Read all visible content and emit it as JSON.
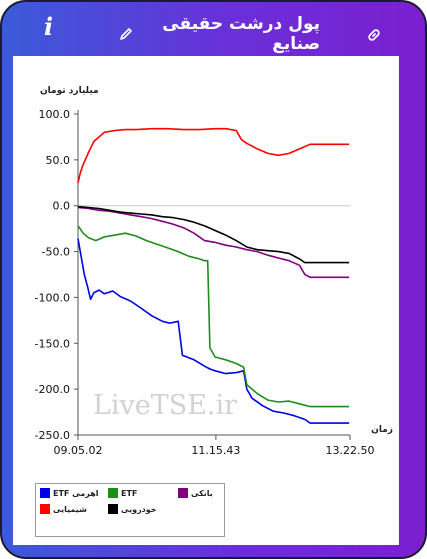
{
  "header": {
    "title": "پول درشت حقیقی صنایع"
  },
  "chart_data": {
    "type": "line",
    "ylabel": "میلیارد تومان",
    "xlabel": "زمان",
    "watermark": "LiveTSE.ir",
    "ylim": [
      -250,
      100
    ],
    "yticks": [
      "100.0",
      "50.0",
      "0.0",
      "-50.0",
      "-100.0",
      "-150.0",
      "-200.0",
      "-250.0"
    ],
    "ytick_values": [
      100,
      50,
      0,
      -50,
      -100,
      -150,
      -200,
      -250
    ],
    "xlim": [
      "09:05:02",
      "13:22:50"
    ],
    "xticks": [
      "09.05.02",
      "11.15.43",
      "13.22.50"
    ],
    "xtick_values": [
      "09:05:02",
      "11:15:43",
      "13:22:50"
    ],
    "x_units": "clock time",
    "legend_placement": "bottom-left",
    "grid": "horizontal zero line only",
    "series": [
      {
        "name": "ETF اهرمی",
        "color": "#0000e6",
        "points": [
          [
            "09:05",
            -36
          ],
          [
            "09:08",
            -55
          ],
          [
            "09:11",
            -75
          ],
          [
            "09:14",
            -88
          ],
          [
            "09:17",
            -102
          ],
          [
            "09:20",
            -95
          ],
          [
            "09:25",
            -92
          ],
          [
            "09:30",
            -96
          ],
          [
            "09:38",
            -93
          ],
          [
            "09:45",
            -99
          ],
          [
            "09:55",
            -104
          ],
          [
            "10:05",
            -112
          ],
          [
            "10:15",
            -120
          ],
          [
            "10:25",
            -126
          ],
          [
            "10:32",
            -128
          ],
          [
            "10:40",
            -126
          ],
          [
            "10:44",
            -163
          ],
          [
            "10:55",
            -168
          ],
          [
            "11:05",
            -175
          ],
          [
            "11:10",
            -178
          ],
          [
            "11:15",
            -180
          ],
          [
            "11:25",
            -183
          ],
          [
            "11:35",
            -182
          ],
          [
            "11:42",
            -180
          ],
          [
            "11:45",
            -200
          ],
          [
            "11:50",
            -210
          ],
          [
            "12:00",
            -218
          ],
          [
            "12:10",
            -224
          ],
          [
            "12:20",
            -226
          ],
          [
            "12:30",
            -229
          ],
          [
            "12:40",
            -233
          ],
          [
            "12:45",
            -237
          ],
          [
            "13:00",
            -237
          ],
          [
            "13:22",
            -237
          ]
        ]
      },
      {
        "name": "ETF",
        "color": "#1e8c1e",
        "points": [
          [
            "09:05",
            -22
          ],
          [
            "09:10",
            -30
          ],
          [
            "09:15",
            -35
          ],
          [
            "09:22",
            -38
          ],
          [
            "09:30",
            -34
          ],
          [
            "09:40",
            -32
          ],
          [
            "09:50",
            -30
          ],
          [
            "10:00",
            -33
          ],
          [
            "10:10",
            -38
          ],
          [
            "10:20",
            -42
          ],
          [
            "10:30",
            -46
          ],
          [
            "10:40",
            -50
          ],
          [
            "10:50",
            -55
          ],
          [
            "11:00",
            -58
          ],
          [
            "11:05",
            -60
          ],
          [
            "11:08",
            -60
          ],
          [
            "11:10",
            -155
          ],
          [
            "11:15",
            -165
          ],
          [
            "11:25",
            -168
          ],
          [
            "11:35",
            -172
          ],
          [
            "11:42",
            -176
          ],
          [
            "11:45",
            -195
          ],
          [
            "11:55",
            -205
          ],
          [
            "12:05",
            -212
          ],
          [
            "12:15",
            -214
          ],
          [
            "12:25",
            -213
          ],
          [
            "12:35",
            -216
          ],
          [
            "12:45",
            -219
          ],
          [
            "13:00",
            -219
          ],
          [
            "13:22",
            -219
          ]
        ]
      },
      {
        "name": "بانکی",
        "color": "#800080",
        "points": [
          [
            "09:05",
            -2
          ],
          [
            "09:15",
            -3
          ],
          [
            "09:25",
            -5
          ],
          [
            "09:35",
            -6
          ],
          [
            "09:45",
            -8
          ],
          [
            "09:55",
            -10
          ],
          [
            "10:05",
            -12
          ],
          [
            "10:15",
            -14
          ],
          [
            "10:25",
            -17
          ],
          [
            "10:35",
            -20
          ],
          [
            "10:45",
            -24
          ],
          [
            "10:55",
            -30
          ],
          [
            "11:05",
            -38
          ],
          [
            "11:15",
            -40
          ],
          [
            "11:25",
            -43
          ],
          [
            "11:35",
            -45
          ],
          [
            "11:45",
            -48
          ],
          [
            "11:55",
            -50
          ],
          [
            "12:05",
            -54
          ],
          [
            "12:15",
            -57
          ],
          [
            "12:25",
            -60
          ],
          [
            "12:35",
            -65
          ],
          [
            "12:40",
            -75
          ],
          [
            "12:45",
            -78
          ],
          [
            "13:00",
            -78
          ],
          [
            "13:22",
            -78
          ]
        ]
      },
      {
        "name": "شیمیایی",
        "color": "#ff0000",
        "points": [
          [
            "09:05",
            25
          ],
          [
            "09:07",
            35
          ],
          [
            "09:10",
            45
          ],
          [
            "09:15",
            58
          ],
          [
            "09:20",
            70
          ],
          [
            "09:25",
            75
          ],
          [
            "09:30",
            80
          ],
          [
            "09:40",
            82
          ],
          [
            "09:50",
            83
          ],
          [
            "10:00",
            83
          ],
          [
            "10:15",
            84
          ],
          [
            "10:30",
            84
          ],
          [
            "10:45",
            83
          ],
          [
            "11:00",
            83
          ],
          [
            "11:15",
            84
          ],
          [
            "11:25",
            84
          ],
          [
            "11:35",
            82
          ],
          [
            "11:40",
            72
          ],
          [
            "11:45",
            68
          ],
          [
            "11:55",
            62
          ],
          [
            "12:05",
            57
          ],
          [
            "12:15",
            55
          ],
          [
            "12:25",
            57
          ],
          [
            "12:35",
            62
          ],
          [
            "12:45",
            67
          ],
          [
            "13:00",
            67
          ],
          [
            "13:22",
            67
          ]
        ]
      },
      {
        "name": "خودرویی",
        "color": "#000000",
        "points": [
          [
            "09:05",
            -1
          ],
          [
            "09:15",
            -2
          ],
          [
            "09:25",
            -3
          ],
          [
            "09:35",
            -5
          ],
          [
            "09:45",
            -7
          ],
          [
            "09:55",
            -8
          ],
          [
            "10:05",
            -9
          ],
          [
            "10:15",
            -10
          ],
          [
            "10:25",
            -12
          ],
          [
            "10:35",
            -13
          ],
          [
            "10:45",
            -15
          ],
          [
            "10:55",
            -18
          ],
          [
            "11:05",
            -22
          ],
          [
            "11:15",
            -27
          ],
          [
            "11:25",
            -32
          ],
          [
            "11:35",
            -38
          ],
          [
            "11:45",
            -45
          ],
          [
            "11:55",
            -48
          ],
          [
            "12:05",
            -49
          ],
          [
            "12:15",
            -50
          ],
          [
            "12:25",
            -52
          ],
          [
            "12:35",
            -58
          ],
          [
            "12:40",
            -62
          ],
          [
            "12:45",
            -62
          ],
          [
            "13:00",
            -62
          ],
          [
            "13:22",
            -62
          ]
        ]
      }
    ]
  }
}
